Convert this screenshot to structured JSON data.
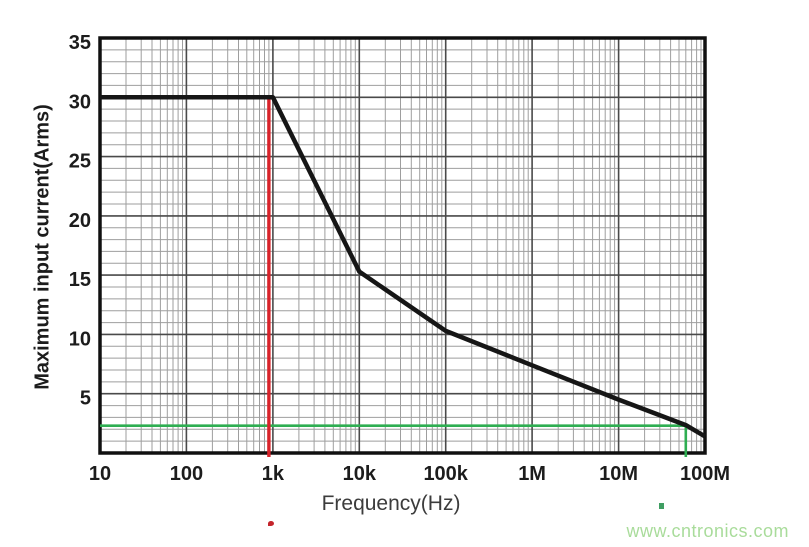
{
  "watermark": {
    "text": "www.cntronics.com",
    "color": "#a9dc9b"
  },
  "artifacts": {
    "red_dot_color": "#c4242b",
    "green_dot_color": "#3f9e62"
  },
  "chart_data": {
    "type": "line",
    "title": "",
    "xlabel": "Frequency(Hz)",
    "ylabel": "Maximum input current(Arms)",
    "x_scale": "log",
    "xlim": [
      10,
      100000000
    ],
    "ylim": [
      0,
      35
    ],
    "grid": "on",
    "legend": "none",
    "x_ticks": [
      {
        "value": 10,
        "label": "10"
      },
      {
        "value": 100,
        "label": "100"
      },
      {
        "value": 1000,
        "label": "1k"
      },
      {
        "value": 10000,
        "label": "10k"
      },
      {
        "value": 100000,
        "label": "100k"
      },
      {
        "value": 1000000,
        "label": "1M"
      },
      {
        "value": 10000000,
        "label": "10M"
      },
      {
        "value": 100000000,
        "label": "100M"
      }
    ],
    "y_ticks": [
      5,
      10,
      15,
      20,
      25,
      30,
      35
    ],
    "y_minor_step": 1,
    "colors": {
      "curve": "#161616",
      "frame": "#101010",
      "major_grid": "#4a4a4a",
      "minor_grid": "#9e9e9e",
      "red_marker": "#d8232a",
      "green_marker": "#2fae52",
      "tick_text": "#1c1c1c",
      "axis_title_text": "#3c3c3c"
    },
    "series": [
      {
        "name": "maximum-input-current-derating",
        "points": [
          [
            10,
            30
          ],
          [
            1000,
            30
          ],
          [
            10000,
            15.3
          ],
          [
            100000,
            10.3
          ],
          [
            1000000,
            7.4
          ],
          [
            10000000,
            4.5
          ],
          [
            60000000,
            2.35
          ],
          [
            100000000,
            1.4
          ]
        ]
      }
    ],
    "annotations": [
      {
        "name": "green-horizontal-marker",
        "type": "hline",
        "y": 2.3,
        "x_from": 10,
        "x_to": 60000000,
        "color_key": "green_marker"
      },
      {
        "name": "green-vertical-marker",
        "type": "vline",
        "x": 60000000,
        "y_from": 0,
        "y_to": 2.3,
        "color_key": "green_marker"
      },
      {
        "name": "red-marker-line",
        "type": "vline",
        "x": 900,
        "y_from": 0,
        "y_to": 30,
        "color_key": "red_marker"
      }
    ]
  }
}
